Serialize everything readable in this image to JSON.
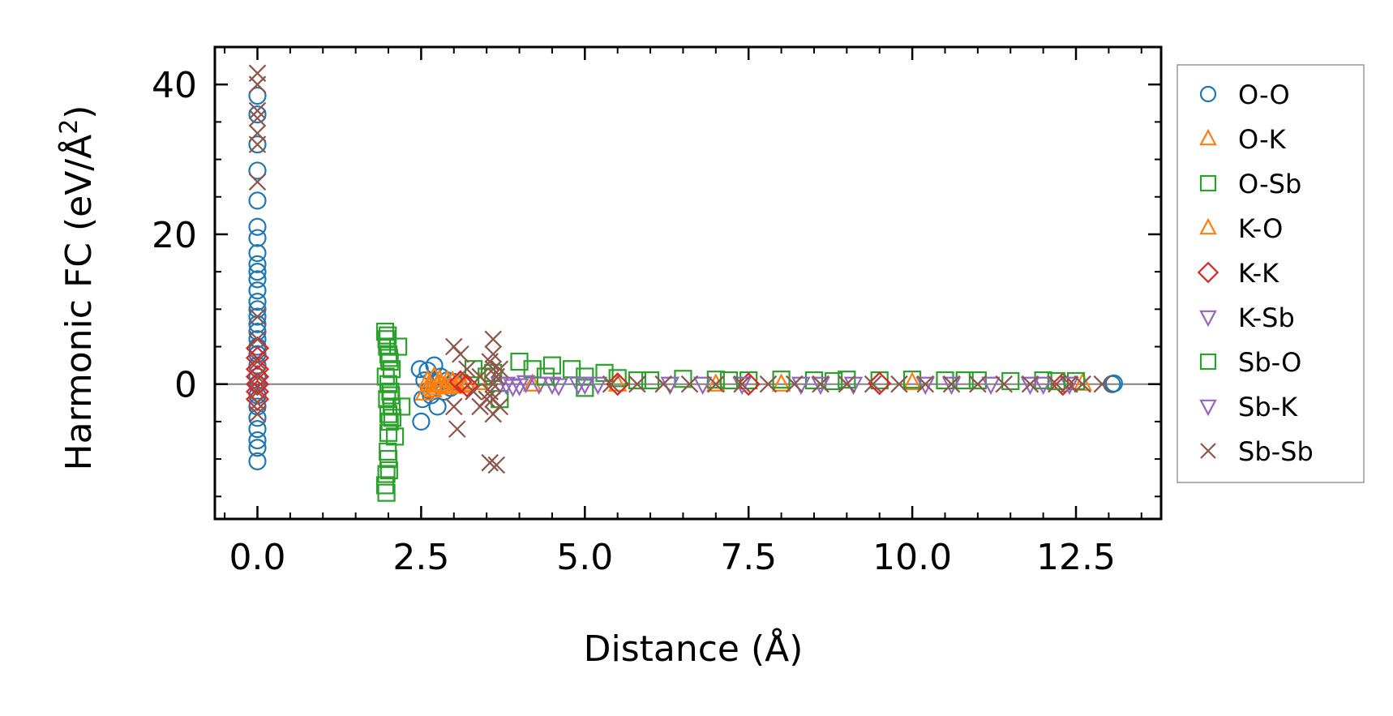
{
  "chart_data": {
    "type": "scatter",
    "xlabel": "Distance (Å)",
    "ylabel_main": "Harmonic FC (eV/Å",
    "ylabel_sup": "2",
    "ylabel_close": ")",
    "xlim": [
      -0.65,
      13.8
    ],
    "ylim": [
      -18,
      45
    ],
    "xticks": [
      0.0,
      2.5,
      5.0,
      7.5,
      10.0,
      12.5
    ],
    "xtick_labels": [
      "0.0",
      "2.5",
      "5.0",
      "7.5",
      "10.0",
      "12.5"
    ],
    "yticks": [
      0,
      20,
      40
    ],
    "ytick_labels": [
      "0",
      "20",
      "40"
    ],
    "zero_line": true,
    "grid": false,
    "legend_position": "outside-right",
    "series": [
      {
        "name": "O-O",
        "marker": "circle",
        "color": "#1f77b4",
        "points": [
          [
            0,
            38.5
          ],
          [
            0,
            36
          ],
          [
            0,
            32
          ],
          [
            0,
            28.5
          ],
          [
            0,
            24.5
          ],
          [
            0,
            21
          ],
          [
            0,
            19.5
          ],
          [
            0,
            17.5
          ],
          [
            0,
            16
          ],
          [
            0,
            15
          ],
          [
            0,
            14
          ],
          [
            0,
            12.5
          ],
          [
            0,
            11
          ],
          [
            0,
            10
          ],
          [
            0,
            9
          ],
          [
            0,
            8
          ],
          [
            0,
            7
          ],
          [
            0,
            6
          ],
          [
            0,
            5
          ],
          [
            0,
            4
          ],
          [
            0,
            2.5
          ],
          [
            0,
            1
          ],
          [
            0,
            0
          ],
          [
            0,
            -1.5
          ],
          [
            0,
            -3
          ],
          [
            0,
            -4.5
          ],
          [
            0,
            -6
          ],
          [
            0,
            -7.5
          ],
          [
            0,
            -8.5
          ],
          [
            0,
            -10.3
          ],
          [
            2.48,
            2
          ],
          [
            2.52,
            -2
          ],
          [
            2.5,
            -5
          ],
          [
            2.6,
            1.8
          ],
          [
            2.65,
            -1.5
          ],
          [
            2.7,
            2.5
          ],
          [
            2.75,
            -3
          ],
          [
            2.8,
            1
          ],
          [
            2.85,
            -1
          ],
          [
            2.9,
            0.5
          ],
          [
            2.95,
            -0.5
          ],
          [
            3.0,
            0.3
          ],
          [
            2.55,
            0.5
          ],
          [
            2.62,
            -0.8
          ],
          [
            2.72,
            0.2
          ],
          [
            13.05,
            0
          ],
          [
            13.08,
            0.1
          ]
        ]
      },
      {
        "name": "O-K",
        "marker": "triangle-up",
        "color": "#ff7f0e",
        "points": [
          [
            2.6,
            0.5
          ],
          [
            2.65,
            -0.5
          ],
          [
            2.7,
            1
          ],
          [
            2.8,
            0
          ],
          [
            2.9,
            0.5
          ],
          [
            3.0,
            -0.3
          ],
          [
            3.1,
            0.3
          ],
          [
            3.2,
            0
          ],
          [
            2.55,
            -1.2
          ],
          [
            2.75,
            -0.2
          ],
          [
            3.4,
            0.2
          ],
          [
            4.2,
            0
          ],
          [
            5.5,
            0
          ],
          [
            7.0,
            0
          ],
          [
            8.0,
            0
          ],
          [
            10.0,
            0.2
          ],
          [
            12.6,
            0.1
          ]
        ]
      },
      {
        "name": "O-Sb",
        "marker": "square",
        "color": "#2ca02c",
        "points": [
          [
            1.95,
            7
          ],
          [
            1.97,
            6
          ],
          [
            1.98,
            5
          ],
          [
            2.0,
            4
          ],
          [
            2.02,
            3
          ],
          [
            2.05,
            2
          ],
          [
            1.96,
            1
          ],
          [
            2.0,
            0
          ],
          [
            2.03,
            -1
          ],
          [
            1.98,
            -2
          ],
          [
            2.05,
            -3
          ],
          [
            2.0,
            -4
          ],
          [
            2.02,
            -5
          ],
          [
            2.0,
            -6.5
          ],
          [
            1.99,
            -9
          ],
          [
            2.0,
            -10
          ],
          [
            2.01,
            -11.5
          ],
          [
            1.95,
            -13.5
          ],
          [
            1.97,
            -14.5
          ],
          [
            2.1,
            -7
          ],
          [
            2.15,
            5
          ],
          [
            2.2,
            -3
          ],
          [
            3.3,
            2
          ],
          [
            3.5,
            1
          ],
          [
            3.7,
            -2
          ],
          [
            4.0,
            3
          ],
          [
            4.2,
            2
          ],
          [
            4.5,
            2.5
          ],
          [
            4.8,
            2
          ],
          [
            5.0,
            1
          ],
          [
            5.3,
            1.5
          ],
          [
            5.0,
            -0.5
          ],
          [
            5.5,
            0.8
          ],
          [
            6.0,
            0.5
          ],
          [
            6.5,
            0.7
          ],
          [
            7.0,
            0.6
          ],
          [
            7.5,
            0.5
          ],
          [
            8.0,
            0.6
          ],
          [
            8.5,
            0.5
          ],
          [
            9.0,
            0.6
          ],
          [
            9.5,
            0.5
          ],
          [
            10.0,
            0.6
          ],
          [
            10.5,
            0.5
          ],
          [
            11.0,
            0.5
          ],
          [
            11.5,
            0.4
          ],
          [
            12.0,
            0.5
          ],
          [
            12.5,
            0.4
          ]
        ]
      },
      {
        "name": "K-O",
        "marker": "triangle-up",
        "color": "#ff7f0e",
        "points": [
          [
            2.62,
            0
          ],
          [
            2.68,
            -0.8
          ],
          [
            2.78,
            0.6
          ],
          [
            2.88,
            -0.4
          ],
          [
            2.98,
            0.4
          ],
          [
            3.05,
            0
          ],
          [
            3.15,
            -0.2
          ]
        ]
      },
      {
        "name": "K-K",
        "marker": "diamond",
        "color": "#d62728",
        "points": [
          [
            0,
            4.8
          ],
          [
            0,
            3.5
          ],
          [
            0,
            2
          ],
          [
            0,
            1
          ],
          [
            0,
            0
          ],
          [
            0,
            -1
          ],
          [
            0,
            -2
          ],
          [
            3.1,
            0.3
          ],
          [
            3.2,
            -0.2
          ],
          [
            5.5,
            0
          ],
          [
            7.5,
            0
          ],
          [
            9.5,
            0.1
          ],
          [
            12.3,
            0
          ]
        ]
      },
      {
        "name": "K-Sb",
        "marker": "triangle-down",
        "color": "#9467bd",
        "points": [
          [
            3.7,
            0
          ],
          [
            3.9,
            -0.3
          ],
          [
            4.1,
            0.2
          ],
          [
            4.3,
            0
          ],
          [
            4.6,
            -0.2
          ],
          [
            4.9,
            0
          ],
          [
            5.2,
            0
          ],
          [
            6.3,
            0
          ],
          [
            7.4,
            0
          ],
          [
            8.3,
            0
          ],
          [
            9.1,
            0
          ],
          [
            10.2,
            0
          ],
          [
            11.2,
            0
          ],
          [
            11.8,
            0
          ],
          [
            12.4,
            0
          ]
        ]
      },
      {
        "name": "Sb-O",
        "marker": "square",
        "color": "#2ca02c",
        "points": [
          [
            1.99,
            6.5
          ],
          [
            2.01,
            3.5
          ],
          [
            2.04,
            -1.5
          ],
          [
            2.06,
            -4.5
          ],
          [
            1.97,
            -12
          ],
          [
            3.6,
            1.5
          ],
          [
            4.4,
            1
          ],
          [
            5.8,
            0.5
          ],
          [
            7.2,
            0.5
          ],
          [
            8.8,
            0.4
          ],
          [
            10.8,
            0.5
          ],
          [
            12.2,
            0.4
          ]
        ]
      },
      {
        "name": "Sb-K",
        "marker": "triangle-down",
        "color": "#9467bd",
        "points": [
          [
            3.8,
            0
          ],
          [
            4.0,
            -0.2
          ],
          [
            4.5,
            0
          ],
          [
            5.0,
            0
          ],
          [
            6.8,
            0
          ],
          [
            8.6,
            0
          ],
          [
            10.6,
            0
          ],
          [
            12.0,
            0
          ]
        ]
      },
      {
        "name": "Sb-Sb",
        "marker": "x",
        "color": "#8c564b",
        "points": [
          [
            0,
            41.5
          ],
          [
            0,
            40
          ],
          [
            0,
            36.5
          ],
          [
            0,
            35.5
          ],
          [
            0,
            33.5
          ],
          [
            0,
            32
          ],
          [
            0,
            27
          ],
          [
            0,
            9
          ],
          [
            0,
            6
          ],
          [
            0,
            3
          ],
          [
            0,
            1
          ],
          [
            0,
            -1
          ],
          [
            0,
            -2.5
          ],
          [
            0,
            -4
          ],
          [
            3.0,
            5
          ],
          [
            3.1,
            4
          ],
          [
            3.0,
            -3
          ],
          [
            3.05,
            -6
          ],
          [
            3.2,
            2
          ],
          [
            3.3,
            -1
          ],
          [
            3.4,
            1
          ],
          [
            3.5,
            -2
          ],
          [
            3.6,
            6
          ],
          [
            3.6,
            4
          ],
          [
            3.55,
            3
          ],
          [
            3.6,
            2
          ],
          [
            3.65,
            1
          ],
          [
            3.6,
            0
          ],
          [
            3.55,
            -1
          ],
          [
            3.6,
            -2
          ],
          [
            3.7,
            -3
          ],
          [
            3.6,
            -4
          ],
          [
            3.55,
            -10.5
          ],
          [
            3.65,
            -10.8
          ],
          [
            3.7,
            2
          ],
          [
            3.4,
            -3
          ],
          [
            5.4,
            0
          ],
          [
            5.8,
            0
          ],
          [
            6.2,
            0
          ],
          [
            6.6,
            0
          ],
          [
            7.0,
            0
          ],
          [
            7.4,
            0
          ],
          [
            7.8,
            0
          ],
          [
            8.2,
            0
          ],
          [
            8.6,
            0
          ],
          [
            9.0,
            0
          ],
          [
            9.4,
            0
          ],
          [
            9.8,
            0
          ],
          [
            10.2,
            0
          ],
          [
            10.6,
            0
          ],
          [
            11.0,
            0
          ],
          [
            11.4,
            0
          ],
          [
            11.8,
            0
          ],
          [
            12.2,
            0
          ],
          [
            12.4,
            0
          ],
          [
            12.6,
            0
          ],
          [
            12.9,
            0
          ]
        ]
      }
    ]
  }
}
